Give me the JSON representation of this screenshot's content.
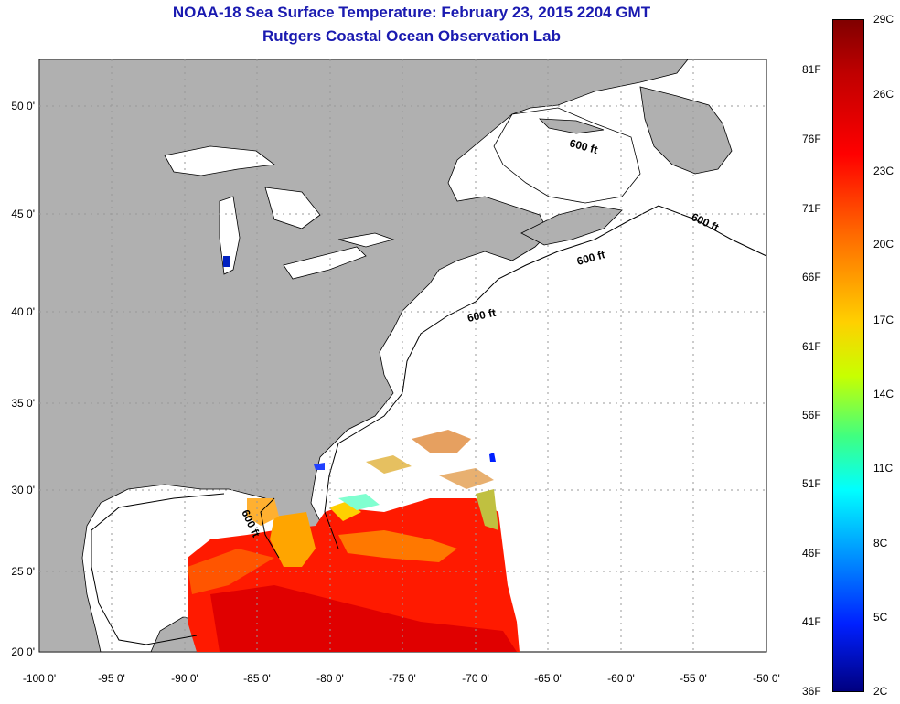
{
  "title": "NOAA-18 Sea Surface Temperature:  February 23, 2015 2204 GMT",
  "subtitle": "Rutgers Coastal Ocean Observation Lab",
  "axes": {
    "x_ticks": [
      "-100 0'",
      "-95 0'",
      "-90 0'",
      "-85 0'",
      "-80 0'",
      "-75 0'",
      "-70 0'",
      "-65 0'",
      "-60 0'",
      "-55 0'",
      "-50 0'"
    ],
    "y_ticks": [
      "50 0'",
      "45 0'",
      "40 0'",
      "35 0'",
      "30 0'",
      "25 0'",
      "20 0'"
    ],
    "lon_range": [
      -100,
      -50
    ],
    "lat_range": [
      20,
      52
    ]
  },
  "contour_labels": [
    "600 ft",
    "600 ft",
    "600 ft",
    "600 ft",
    "600 ft"
  ],
  "colorbar": {
    "celsius": [
      "29C",
      "26C",
      "23C",
      "20C",
      "17C",
      "14C",
      "11C",
      "8C",
      "5C",
      "2C"
    ],
    "fahrenheit": [
      "81F",
      "76F",
      "71F",
      "66F",
      "61F",
      "56F",
      "51F",
      "46F",
      "41F",
      "36F"
    ]
  },
  "colors": {
    "land": "#b0b0b0",
    "ocean": "#ffffff",
    "title": "#1a1ab0"
  }
}
